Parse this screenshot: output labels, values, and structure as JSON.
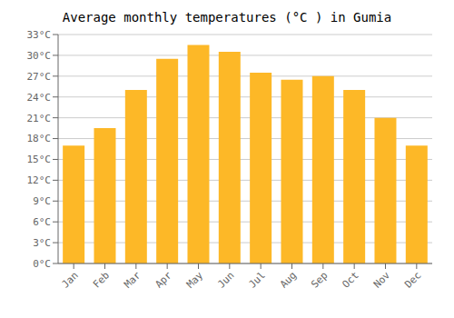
{
  "chart_data": {
    "type": "bar",
    "title": "Average monthly temperatures (°C ) in Gumia",
    "categories": [
      "Jan",
      "Feb",
      "Mar",
      "Apr",
      "May",
      "Jun",
      "Jul",
      "Aug",
      "Sep",
      "Oct",
      "Nov",
      "Dec"
    ],
    "values": [
      17,
      19.5,
      25,
      29.5,
      31.5,
      30.5,
      27.5,
      26.5,
      27,
      25,
      21,
      17
    ],
    "color": "#FDB827",
    "ylim": [
      0,
      33
    ],
    "yticks": [
      {
        "value": 0,
        "label": "0°C"
      },
      {
        "value": 3,
        "label": "3°C"
      },
      {
        "value": 6,
        "label": "6°C"
      },
      {
        "value": 9,
        "label": "9°C"
      },
      {
        "value": 12,
        "label": "12°C"
      },
      {
        "value": 15,
        "label": "15°C"
      },
      {
        "value": 18,
        "label": "18°C"
      },
      {
        "value": 21,
        "label": "21°C"
      },
      {
        "value": 24,
        "label": "24°C"
      },
      {
        "value": 27,
        "label": "27°C"
      },
      {
        "value": 30,
        "label": "30°C"
      },
      {
        "value": 33,
        "label": "33°C"
      }
    ],
    "grid": true
  }
}
